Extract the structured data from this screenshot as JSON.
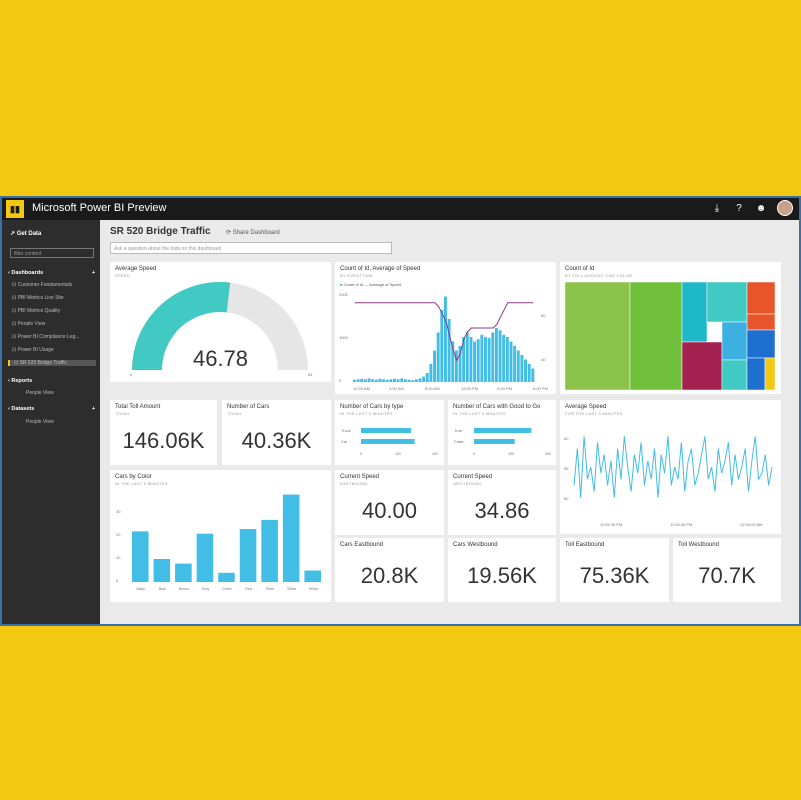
{
  "app": {
    "title": "Microsoft Power BI Preview",
    "logo_icon": "power-bi-logo"
  },
  "topbar_icons": [
    "download-icon",
    "help-icon",
    "smiley-icon",
    "user-avatar"
  ],
  "sidebar": {
    "get_data": "Get Data",
    "filter_placeholder": "filter content",
    "dashboards_label": "Dashboards",
    "dashboards": [
      "Customer Fundamentals",
      "PBI Metrics Live Site",
      "PBI Metrics Quality",
      "People View",
      "Power BI Compliance Leg...",
      "Power BI Usage",
      "SR 520 Bridge Traffic"
    ],
    "reports_label": "Reports",
    "reports": [
      "People View"
    ],
    "datasets_label": "Datasets",
    "datasets": [
      "People View"
    ]
  },
  "dashboard": {
    "title": "SR 520 Bridge Traffic",
    "share": "Share Dashboard",
    "qa_placeholder": "Ask a question about the data on this dashboard"
  },
  "tiles": {
    "avg_speed": {
      "title": "Average Speed",
      "sub": "SPEED",
      "value": "46.78",
      "min": "0",
      "max": "54",
      "fraction": 0.866
    },
    "count_speed": {
      "title": "Count of Id, Average of Speed",
      "sub": "BY EVENTTIME",
      "legend1": "Count of Id",
      "legend2": "Average of Speed",
      "yleft": [
        "2000",
        "1000",
        "0"
      ],
      "yright": [
        "50",
        "40"
      ],
      "xticks": [
        "12:00 AM",
        "4:00 AM",
        "8:00 AM",
        "12:00 PM",
        "4:00 PM",
        "8:00 PM"
      ]
    },
    "count_id": {
      "title": "Count of Id",
      "sub": "BY TOLL AMOUNT, CAR COLOR"
    },
    "total_toll": {
      "title": "Total Toll Amount",
      "sub": "TODAY",
      "value": "146.06K"
    },
    "num_cars": {
      "title": "Number of Cars",
      "sub": "TODAY",
      "value": "40.36K"
    },
    "cars_type": {
      "title": "Number of Cars by type",
      "sub": "IN THE LAST 5 MINUTES",
      "cats": [
        "Truck",
        "Car"
      ],
      "values": [
        135,
        145
      ],
      "xticks": [
        "0",
        "100",
        "200"
      ]
    },
    "good_to_go": {
      "title": "Number of Cars with Good to Go",
      "sub": "IN THE LAST 5 MINUTES",
      "cats": [
        "True",
        "False"
      ],
      "values": [
        155,
        110
      ],
      "xticks": [
        "0",
        "100",
        "200"
      ]
    },
    "avg_speed_line": {
      "title": "Average Speed",
      "sub": "FOR THE LAST 5 MINUTES",
      "yticks": [
        "60",
        "55",
        "50"
      ],
      "xticks": [
        "11:59:30 PM",
        "11:59:40 PM",
        "12:00:00 AM"
      ]
    },
    "car_color": {
      "title": "Cars by Color",
      "sub": "IN THE LAST 5 MINUTES",
      "yticks": [
        "30",
        "20",
        "10",
        "0"
      ]
    },
    "current_speed_1": {
      "title": "Current Speed",
      "sub": "EASTBOUND",
      "value": "40.00"
    },
    "current_speed_2": {
      "title": "Current Speed",
      "sub": "WESTBOUND",
      "value": "34.86"
    },
    "cars_east": {
      "title": "Cars Eastbound",
      "sub": "",
      "value": "20.8K"
    },
    "cars_west": {
      "title": "Cars Westbound",
      "sub": "",
      "value": "19.56K"
    },
    "toll_east": {
      "title": "Toll Eastbound",
      "sub": "",
      "value": "75.36K"
    },
    "toll_west": {
      "title": "Toll Westbound",
      "sub": "",
      "value": "70.7K"
    }
  },
  "chart_data": [
    {
      "type": "bar",
      "title": "Cars by Color",
      "categories": [
        "Black",
        "Blue",
        "Brown",
        "Gray",
        "Green",
        "Red",
        "Silver",
        "White",
        "Yellow"
      ],
      "values": [
        22,
        10,
        8,
        21,
        4,
        23,
        27,
        38,
        5
      ],
      "ylim": [
        0,
        40
      ]
    },
    {
      "type": "bar",
      "title": "Count of Id, Average of Speed",
      "series": [
        {
          "name": "Count of Id",
          "values": [
            50,
            60,
            70,
            60,
            80,
            60,
            50,
            70,
            60,
            50,
            60,
            70,
            60,
            80,
            60,
            50,
            40,
            60,
            80,
            120,
            200,
            400,
            700,
            1100,
            1600,
            1900,
            1400,
            900,
            700,
            800,
            1000,
            1100,
            1000,
            900,
            950,
            1050,
            1000,
            980,
            1100,
            1200,
            1150,
            1050,
            1000,
            900,
            800,
            700,
            600,
            500,
            400,
            300
          ]
        },
        {
          "name": "Average of Speed",
          "values": [
            52,
            52,
            52,
            52,
            52,
            52,
            52,
            52,
            52,
            52,
            52,
            52,
            52,
            52,
            52,
            52,
            52,
            52,
            52,
            52,
            52,
            52,
            52,
            51,
            49,
            47,
            43,
            39,
            36,
            38,
            42,
            44,
            45,
            45,
            45,
            45,
            45,
            45,
            45,
            46,
            48,
            50,
            52,
            52,
            52,
            52,
            52,
            52,
            52,
            52
          ]
        }
      ]
    },
    {
      "type": "line",
      "title": "Average Speed",
      "values": [
        52,
        58,
        50,
        60,
        53,
        55,
        51,
        59,
        54,
        57,
        52,
        56,
        50,
        58,
        53,
        60,
        55,
        51,
        57,
        54,
        59,
        52,
        56,
        53,
        58,
        50,
        57,
        54,
        60,
        52,
        55,
        53,
        59,
        51,
        56,
        58,
        52,
        54,
        57,
        60,
        53,
        55,
        51,
        58,
        54,
        56,
        59,
        52,
        57,
        53,
        55,
        58,
        51,
        56,
        60,
        53,
        54,
        57,
        52,
        55
      ]
    }
  ]
}
